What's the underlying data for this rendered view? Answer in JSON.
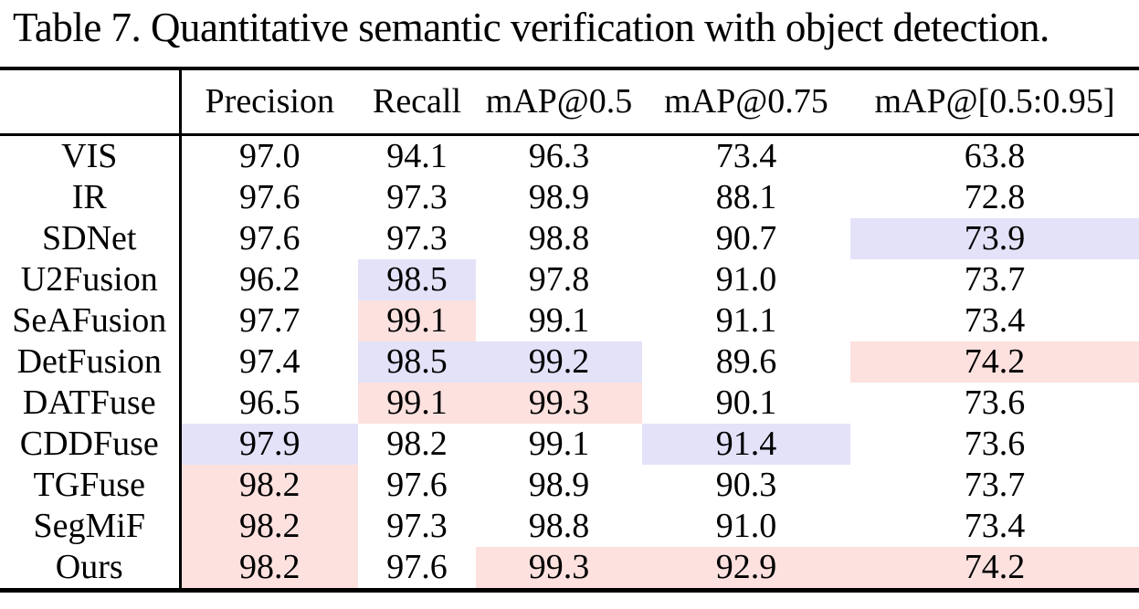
{
  "title": "Table 7. Quantitative semantic verification with object detection.",
  "colors": {
    "best_highlight": "#fce1df",
    "second_highlight": "#e3e2f9",
    "rule": "#000000",
    "text": "#000000",
    "background": "#ffffff"
  },
  "table": {
    "columns": [
      "Precision",
      "Recall",
      "mAP@0.5",
      "mAP@0.75",
      "mAP@[0.5:0.95]"
    ],
    "rows": [
      {
        "label": "VIS",
        "values": [
          "97.0",
          "94.1",
          "96.3",
          "73.4",
          "63.8"
        ],
        "marks": [
          "",
          "",
          "",
          "",
          ""
        ]
      },
      {
        "label": "IR",
        "values": [
          "97.6",
          "97.3",
          "98.9",
          "88.1",
          "72.8"
        ],
        "marks": [
          "",
          "",
          "",
          "",
          ""
        ]
      },
      {
        "label": "SDNet",
        "values": [
          "97.6",
          "97.3",
          "98.8",
          "90.7",
          "73.9"
        ],
        "marks": [
          "",
          "",
          "",
          "",
          "second"
        ]
      },
      {
        "label": "U2Fusion",
        "values": [
          "96.2",
          "98.5",
          "97.8",
          "91.0",
          "73.7"
        ],
        "marks": [
          "",
          "second",
          "",
          "",
          ""
        ]
      },
      {
        "label": "SeAFusion",
        "values": [
          "97.7",
          "99.1",
          "99.1",
          "91.1",
          "73.4"
        ],
        "marks": [
          "",
          "best",
          "",
          "",
          ""
        ]
      },
      {
        "label": "DetFusion",
        "values": [
          "97.4",
          "98.5",
          "99.2",
          "89.6",
          "74.2"
        ],
        "marks": [
          "",
          "second",
          "second",
          "",
          "best"
        ]
      },
      {
        "label": "DATFuse",
        "values": [
          "96.5",
          "99.1",
          "99.3",
          "90.1",
          "73.6"
        ],
        "marks": [
          "",
          "best",
          "best",
          "",
          ""
        ]
      },
      {
        "label": "CDDFuse",
        "values": [
          "97.9",
          "98.2",
          "99.1",
          "91.4",
          "73.6"
        ],
        "marks": [
          "second",
          "",
          "",
          "second",
          ""
        ]
      },
      {
        "label": "TGFuse",
        "values": [
          "98.2",
          "97.6",
          "98.9",
          "90.3",
          "73.7"
        ],
        "marks": [
          "best",
          "",
          "",
          "",
          ""
        ]
      },
      {
        "label": "SegMiF",
        "values": [
          "98.2",
          "97.3",
          "98.8",
          "91.0",
          "73.4"
        ],
        "marks": [
          "best",
          "",
          "",
          "",
          ""
        ]
      },
      {
        "label": "Ours",
        "values": [
          "98.2",
          "97.6",
          "99.3",
          "92.9",
          "74.2"
        ],
        "marks": [
          "best",
          "",
          "best",
          "best",
          "best"
        ]
      }
    ],
    "mark_meaning": {
      "best": "best value (pink highlight)",
      "second": "second-best value (lavender highlight)"
    }
  }
}
